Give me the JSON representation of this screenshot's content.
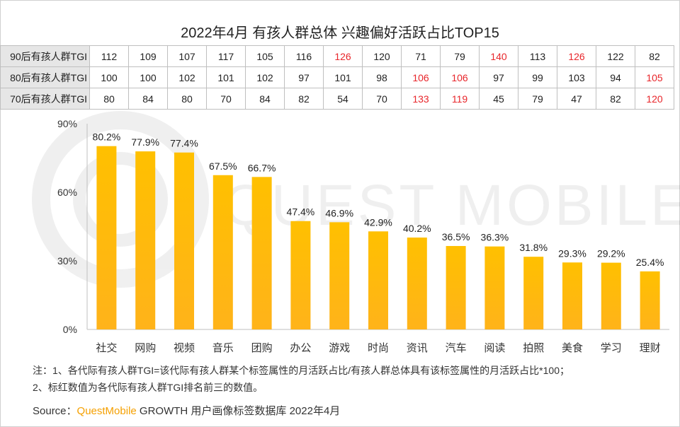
{
  "title": "2022年4月 有孩人群总体 兴趣偏好活跃占比TOP15",
  "watermark": "QUEST MOBILE",
  "tgi_table": {
    "rows": [
      {
        "label": "90后有孩人群TGI",
        "values": [
          "112",
          "109",
          "107",
          "117",
          "105",
          "116",
          "126",
          "120",
          "71",
          "79",
          "140",
          "113",
          "126",
          "122",
          "82"
        ],
        "highlight": [
          6,
          10,
          12
        ]
      },
      {
        "label": "80后有孩人群TGI",
        "values": [
          "100",
          "100",
          "102",
          "101",
          "102",
          "97",
          "101",
          "98",
          "106",
          "106",
          "97",
          "99",
          "103",
          "94",
          "105"
        ],
        "highlight": [
          8,
          9,
          14
        ]
      },
      {
        "label": "70后有孩人群TGI",
        "values": [
          "80",
          "84",
          "80",
          "70",
          "84",
          "82",
          "54",
          "70",
          "133",
          "119",
          "45",
          "79",
          "47",
          "82",
          "120"
        ],
        "highlight": [
          8,
          9,
          14
        ]
      }
    ]
  },
  "chart_data": {
    "type": "bar",
    "categories": [
      "社交",
      "网购",
      "视频",
      "音乐",
      "团购",
      "办公",
      "游戏",
      "时尚",
      "资讯",
      "汽车",
      "阅读",
      "拍照",
      "美食",
      "学习",
      "理财"
    ],
    "values": [
      80.2,
      77.9,
      77.4,
      67.5,
      66.7,
      47.4,
      46.9,
      42.9,
      40.2,
      36.5,
      36.3,
      31.8,
      29.3,
      29.2,
      25.4
    ],
    "value_labels": [
      "80.2%",
      "77.9%",
      "77.4%",
      "67.5%",
      "66.7%",
      "47.4%",
      "46.9%",
      "42.9%",
      "40.2%",
      "36.5%",
      "36.3%",
      "31.8%",
      "29.3%",
      "29.2%",
      "25.4%"
    ],
    "yticks": [
      0,
      30,
      60,
      90
    ],
    "ytick_labels": [
      "0%",
      "30%",
      "60%",
      "90%"
    ],
    "ylim": [
      0,
      90
    ],
    "grid": false,
    "bar_color_top": "#FFC000",
    "bar_color_bottom": "#FFB31A",
    "highlight_color": "#E8262B"
  },
  "notes": {
    "line1": "注：1、各代际有孩人群TGI=该代际有孩人群某个标签属性的月活跃占比/有孩人群总体具有该标签属性的月活跃占比*100；",
    "line2": "2、标红数值为各代际有孩人群TGI排名前三的数值。"
  },
  "source": {
    "prefix": "Source：",
    "brand": "QuestMobile",
    "rest": " GROWTH 用户画像标签数据库 2022年4月"
  }
}
